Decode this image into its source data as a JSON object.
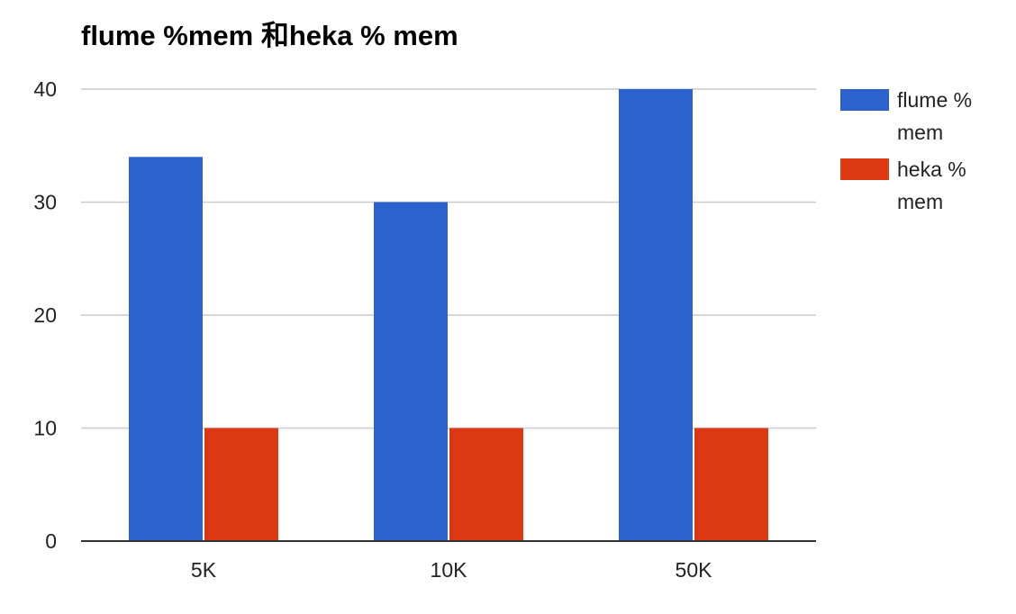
{
  "chart_data": {
    "type": "bar",
    "title": "flume %mem 和heka % mem",
    "xlabel": "",
    "ylabel": "",
    "categories": [
      "5K",
      "10K",
      "50K"
    ],
    "series": [
      {
        "name": "flume % mem",
        "legend_lines": [
          "flume %",
          "mem"
        ],
        "color": "#2d62cc",
        "values": [
          34,
          30,
          40
        ]
      },
      {
        "name": "heka % mem",
        "legend_lines": [
          "heka %",
          "mem"
        ],
        "color": "#dc3912",
        "values": [
          10,
          10,
          10
        ]
      }
    ],
    "ylim": [
      0,
      40
    ],
    "yticks": [
      "0",
      "10",
      "20",
      "30",
      "40"
    ],
    "grid": true,
    "legend_position": "right"
  }
}
